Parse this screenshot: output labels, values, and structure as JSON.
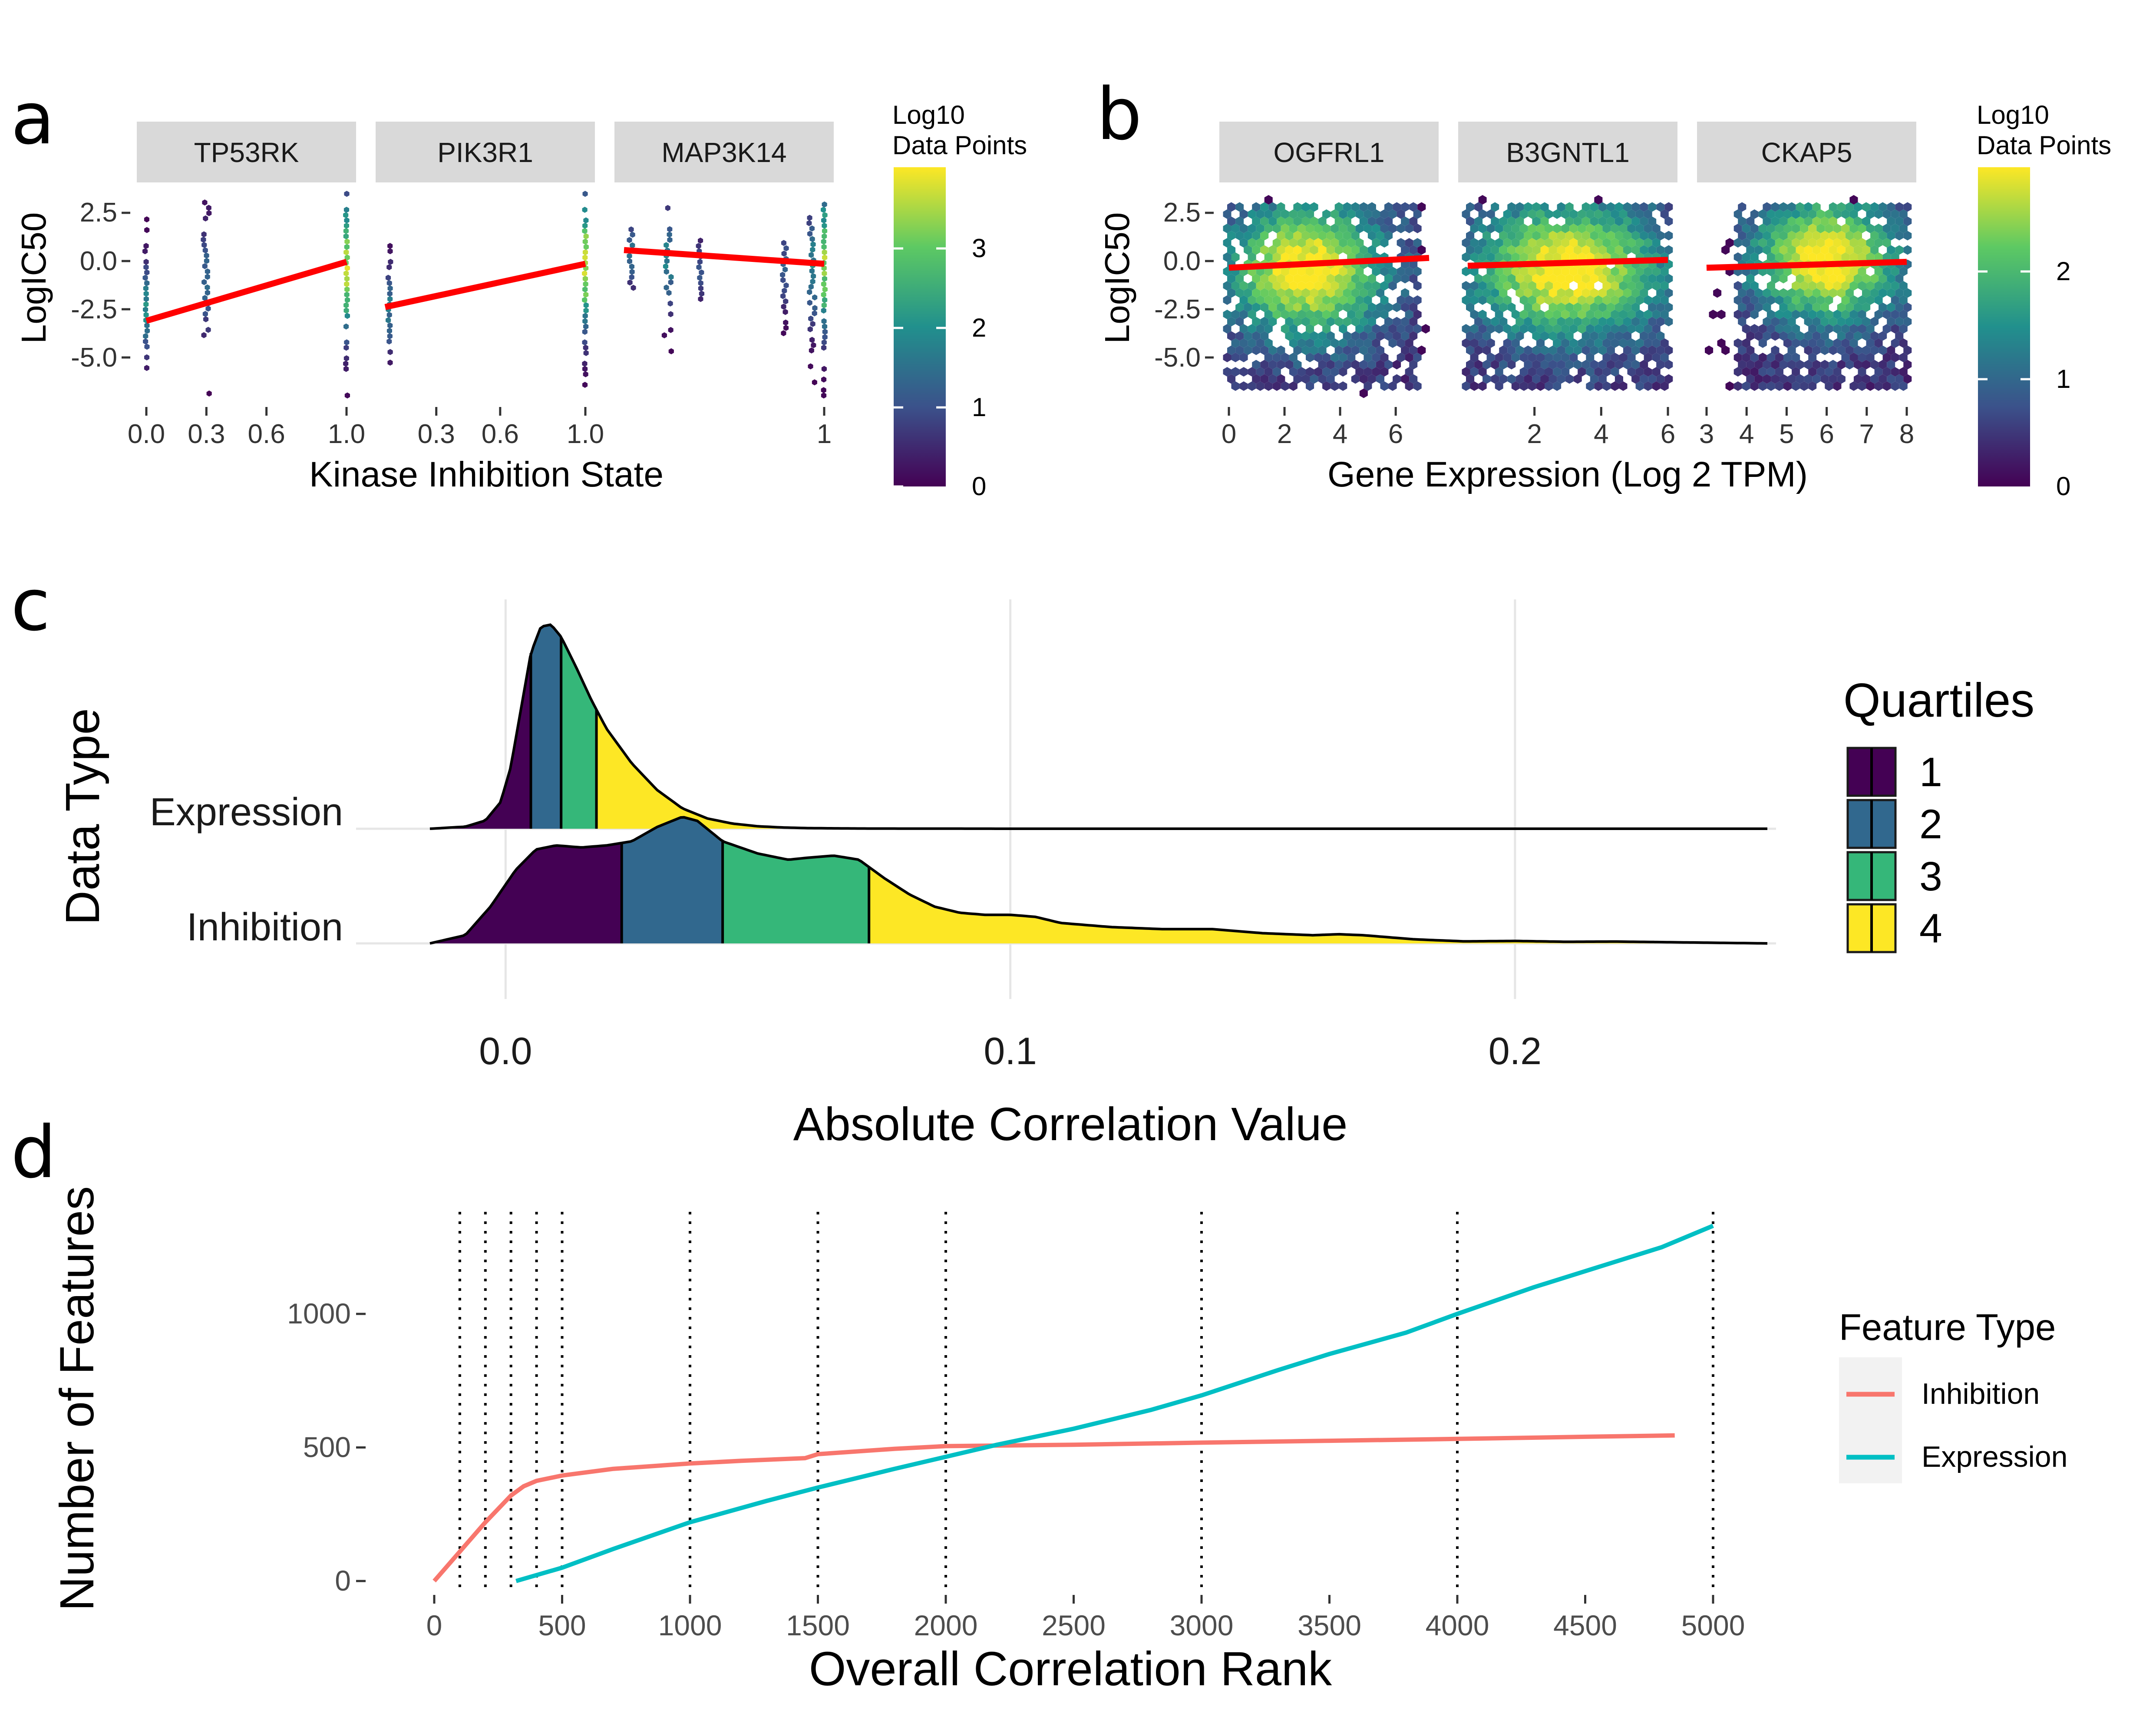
{
  "panels": {
    "a": {
      "letter": "a",
      "xlabel": "Kinase Inhibition State",
      "ylabel": "LogIC50",
      "yticks": [
        "2.5",
        "0.0",
        "-2.5",
        "-5.0"
      ],
      "legend": {
        "title_line1": "Log10",
        "title_line2": "Data Points",
        "ticks": [
          "0",
          "1",
          "2",
          "3"
        ]
      }
    },
    "b": {
      "letter": "b",
      "xlabel": "Gene Expression (Log 2 TPM)",
      "ylabel": "LogIC50",
      "yticks": [
        "2.5",
        "0.0",
        "-2.5",
        "-5.0"
      ],
      "legend": {
        "title_line1": "Log10",
        "title_line2": "Data Points",
        "ticks": [
          "0",
          "1",
          "2"
        ]
      }
    },
    "c": {
      "letter": "c",
      "xlabel": "Absolute Correlation Value",
      "ylabel": "Data Type",
      "legend": {
        "title": "Quartiles",
        "items": [
          "1",
          "2",
          "3",
          "4"
        ]
      }
    },
    "d": {
      "letter": "d",
      "xlabel": "Overall Correlation Rank",
      "ylabel": "Number of Features",
      "legend": {
        "title": "Feature Type",
        "items": [
          "Inhibition",
          "Expression"
        ]
      }
    }
  },
  "chart_data": [
    {
      "panel": "a",
      "type": "scatter",
      "subtype": "hexbin facets with linear fit",
      "facets": [
        {
          "name": "TP53RK",
          "x_ticks": [
            "0.0",
            "0.3",
            "0.6",
            "1.0"
          ],
          "x_tick_values": [
            0,
            0.3,
            0.6,
            1.0
          ],
          "xlim": [
            0,
            1
          ],
          "fit": [
            [
              0,
              -3.1
            ],
            [
              1,
              -0.1
            ]
          ]
        },
        {
          "name": "PIK3R1",
          "x_ticks": [
            "0.3",
            "0.6",
            "1.0"
          ],
          "x_tick_values": [
            0.3,
            0.6,
            1.0
          ],
          "xlim": [
            0.06,
            1
          ],
          "fit": [
            [
              0.06,
              -2.4
            ],
            [
              1,
              -0.2
            ]
          ]
        },
        {
          "name": "MAP3K14",
          "x_ticks": [
            "1"
          ],
          "x_tick_values": [
            1
          ],
          "xlim": [
            0.5,
            1
          ],
          "fit": [
            [
              0.5,
              0.5
            ],
            [
              1,
              -0.2
            ]
          ]
        }
      ],
      "ylim": [
        -7,
        3.5
      ],
      "fill_scale": {
        "min": 0,
        "max": 3.8
      }
    },
    {
      "panel": "b",
      "type": "scatter",
      "subtype": "hexbin facets with linear fit",
      "facets": [
        {
          "name": "OGFRL1",
          "x_ticks": [
            "0",
            "2",
            "4",
            "6"
          ],
          "x_tick_values": [
            0,
            2,
            4,
            6
          ],
          "xlim": [
            0,
            7.2
          ],
          "fit": [
            [
              0,
              -0.4
            ],
            [
              7.2,
              0.1
            ]
          ]
        },
        {
          "name": "B3GNTL1",
          "x_ticks": [
            "2",
            "4",
            "6"
          ],
          "x_tick_values": [
            2,
            4,
            6
          ],
          "xlim": [
            0,
            6
          ],
          "fit": [
            [
              0,
              -0.3
            ],
            [
              6,
              0.0
            ]
          ]
        },
        {
          "name": "CKAP5",
          "x_ticks": [
            "3",
            "4",
            "5",
            "6",
            "7",
            "8"
          ],
          "x_tick_values": [
            3,
            4,
            5,
            6,
            7,
            8
          ],
          "xlim": [
            3,
            8
          ],
          "fit": [
            [
              3,
              -0.4
            ],
            [
              8,
              -0.1
            ]
          ]
        }
      ],
      "ylim": [
        -7,
        3.5
      ],
      "fill_scale": {
        "min": 0,
        "max": 2.9
      }
    },
    {
      "panel": "c",
      "type": "area",
      "subtype": "ridgeline density with quartile fill",
      "x_ticks": [
        "0.0",
        "0.1",
        "0.2"
      ],
      "x_tick_values": [
        0,
        0.1,
        0.2
      ],
      "xlim": [
        -0.015,
        0.25
      ],
      "series": [
        {
          "name": "Expression",
          "quartile_breaks": [
            0.005,
            0.011,
            0.018
          ],
          "density": [
            [
              -0.015,
              0
            ],
            [
              -0.008,
              0.01
            ],
            [
              -0.004,
              0.04
            ],
            [
              -0.001,
              0.13
            ],
            [
              0.001,
              0.3
            ],
            [
              0.003,
              0.58
            ],
            [
              0.005,
              0.86
            ],
            [
              0.007,
              0.99
            ],
            [
              0.009,
              1.0
            ],
            [
              0.011,
              0.94
            ],
            [
              0.014,
              0.79
            ],
            [
              0.017,
              0.63
            ],
            [
              0.02,
              0.49
            ],
            [
              0.025,
              0.32
            ],
            [
              0.03,
              0.19
            ],
            [
              0.035,
              0.1
            ],
            [
              0.04,
              0.05
            ],
            [
              0.045,
              0.025
            ],
            [
              0.05,
              0.012
            ],
            [
              0.055,
              0.006
            ],
            [
              0.06,
              0.003
            ],
            [
              0.07,
              0.001
            ],
            [
              0.1,
              0.0
            ],
            [
              0.25,
              0
            ]
          ]
        },
        {
          "name": "Inhibition",
          "quartile_breaks": [
            0.023,
            0.043,
            0.072
          ],
          "density": [
            [
              -0.015,
              0
            ],
            [
              -0.008,
              0.04
            ],
            [
              -0.003,
              0.18
            ],
            [
              0.002,
              0.36
            ],
            [
              0.006,
              0.46
            ],
            [
              0.01,
              0.48
            ],
            [
              0.015,
              0.47
            ],
            [
              0.02,
              0.48
            ],
            [
              0.025,
              0.5
            ],
            [
              0.03,
              0.57
            ],
            [
              0.035,
              0.62
            ],
            [
              0.038,
              0.6
            ],
            [
              0.043,
              0.5
            ],
            [
              0.05,
              0.44
            ],
            [
              0.056,
              0.41
            ],
            [
              0.06,
              0.42
            ],
            [
              0.065,
              0.43
            ],
            [
              0.07,
              0.41
            ],
            [
              0.075,
              0.32
            ],
            [
              0.08,
              0.24
            ],
            [
              0.085,
              0.18
            ],
            [
              0.09,
              0.15
            ],
            [
              0.095,
              0.14
            ],
            [
              0.1,
              0.14
            ],
            [
              0.105,
              0.13
            ],
            [
              0.11,
              0.1
            ],
            [
              0.12,
              0.08
            ],
            [
              0.13,
              0.07
            ],
            [
              0.14,
              0.07
            ],
            [
              0.15,
              0.05
            ],
            [
              0.16,
              0.04
            ],
            [
              0.165,
              0.045
            ],
            [
              0.17,
              0.04
            ],
            [
              0.18,
              0.02
            ],
            [
              0.19,
              0.01
            ],
            [
              0.2,
              0.012
            ],
            [
              0.21,
              0.008
            ],
            [
              0.22,
              0.009
            ],
            [
              0.23,
              0.006
            ],
            [
              0.25,
              0.0
            ]
          ]
        }
      ]
    },
    {
      "panel": "d",
      "type": "line",
      "x_ticks": [
        "0",
        "500",
        "1000",
        "1500",
        "2000",
        "2500",
        "3000",
        "3500",
        "4000",
        "4500",
        "5000"
      ],
      "x_tick_values": [
        0,
        500,
        1000,
        1500,
        2000,
        2500,
        3000,
        3500,
        4000,
        4500,
        5000
      ],
      "y_ticks": [
        "0",
        "500",
        "1000"
      ],
      "y_tick_values": [
        0,
        500,
        1000
      ],
      "xlim": [
        -50,
        5050
      ],
      "ylim": [
        -60,
        1380
      ],
      "vlines": [
        100,
        200,
        300,
        400,
        500,
        1000,
        1500,
        2000,
        3000,
        4000,
        5000
      ],
      "series": [
        {
          "name": "Inhibition",
          "color": "#F8766D",
          "points": [
            [
              0,
              0
            ],
            [
              100,
              110
            ],
            [
              200,
              220
            ],
            [
              300,
              320
            ],
            [
              350,
              355
            ],
            [
              400,
              375
            ],
            [
              500,
              395
            ],
            [
              700,
              420
            ],
            [
              1000,
              440
            ],
            [
              1200,
              450
            ],
            [
              1450,
              460
            ],
            [
              1500,
              475
            ],
            [
              1800,
              495
            ],
            [
              2000,
              505
            ],
            [
              2500,
              510
            ],
            [
              3000,
              518
            ],
            [
              3500,
              525
            ],
            [
              4000,
              532
            ],
            [
              4500,
              540
            ],
            [
              4850,
              545
            ]
          ]
        },
        {
          "name": "Expression",
          "color": "#00BFC4",
          "points": [
            [
              320,
              0
            ],
            [
              500,
              50
            ],
            [
              700,
              120
            ],
            [
              1000,
              220
            ],
            [
              1300,
              300
            ],
            [
              1500,
              350
            ],
            [
              1800,
              420
            ],
            [
              2000,
              465
            ],
            [
              2200,
              510
            ],
            [
              2500,
              570
            ],
            [
              2800,
              640
            ],
            [
              3000,
              695
            ],
            [
              3300,
              790
            ],
            [
              3500,
              850
            ],
            [
              3800,
              930
            ],
            [
              4000,
              1000
            ],
            [
              4300,
              1100
            ],
            [
              4500,
              1160
            ],
            [
              4800,
              1250
            ],
            [
              5000,
              1330
            ]
          ]
        }
      ]
    }
  ]
}
